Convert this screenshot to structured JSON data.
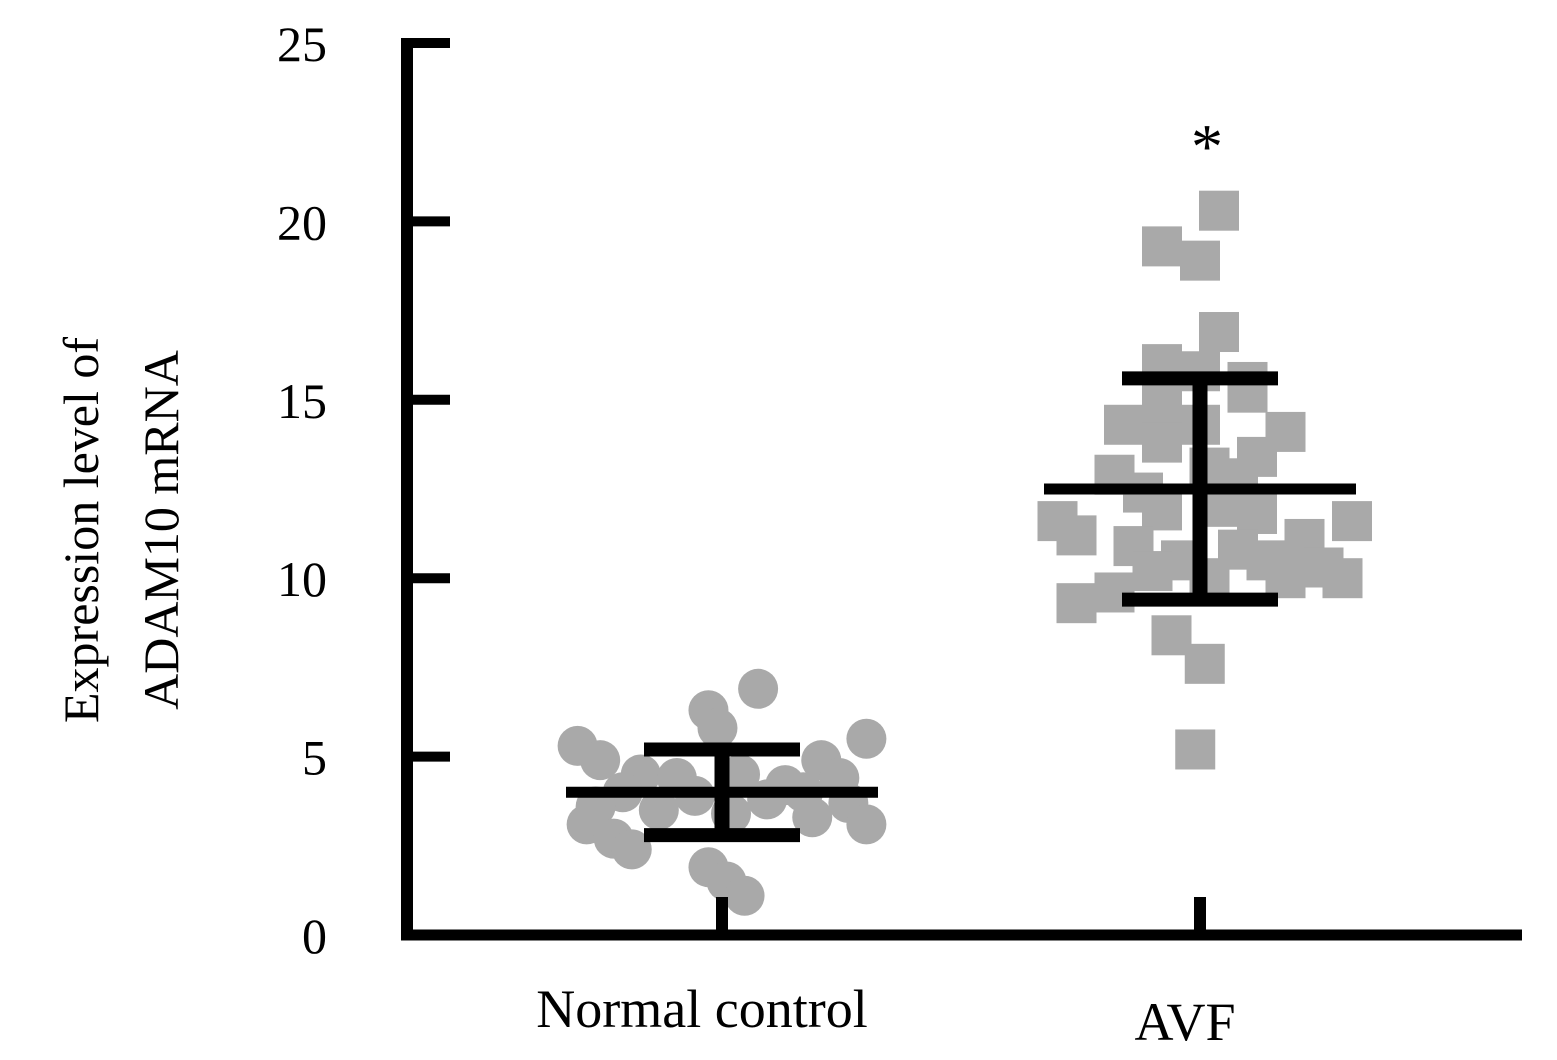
{
  "chart_data": {
    "type": "scatter",
    "title": "",
    "xlabel": "",
    "ylabel_lines": [
      "Expression level of",
      "ADAM10 mRNA"
    ],
    "ylim": [
      0,
      25
    ],
    "yticks": [
      0,
      5,
      10,
      15,
      20,
      25
    ],
    "ytick_labels": [
      "0",
      "5",
      "10",
      "15",
      "20",
      "25"
    ],
    "categories": [
      "Normal control",
      "AVF"
    ],
    "grid": false,
    "marker_color": "#a9a9a9",
    "errorbar_color": "#000000",
    "series": [
      {
        "name": "Normal control",
        "marker": "circle",
        "mean": 4.0,
        "sd_upper": 5.2,
        "sd_lower": 2.8,
        "points": [
          {
            "offset": 0.4,
            "y": 6.9
          },
          {
            "offset": -0.15,
            "y": 6.3
          },
          {
            "offset": -0.05,
            "y": 5.8
          },
          {
            "offset": -1.6,
            "y": 5.3
          },
          {
            "offset": -1.35,
            "y": 4.9
          },
          {
            "offset": 1.6,
            "y": 5.5
          },
          {
            "offset": 1.1,
            "y": 4.9
          },
          {
            "offset": 1.3,
            "y": 4.4
          },
          {
            "offset": -0.9,
            "y": 4.5
          },
          {
            "offset": -0.5,
            "y": 4.4
          },
          {
            "offset": 0.2,
            "y": 4.5
          },
          {
            "offset": 0.7,
            "y": 4.2
          },
          {
            "offset": -1.1,
            "y": 4.0
          },
          {
            "offset": 0.9,
            "y": 4.0
          },
          {
            "offset": -0.3,
            "y": 3.9
          },
          {
            "offset": 0.5,
            "y": 3.8
          },
          {
            "offset": -1.4,
            "y": 3.6
          },
          {
            "offset": 1.4,
            "y": 3.7
          },
          {
            "offset": -0.7,
            "y": 3.5
          },
          {
            "offset": 0.1,
            "y": 3.4
          },
          {
            "offset": 1.0,
            "y": 3.3
          },
          {
            "offset": -1.5,
            "y": 3.1
          },
          {
            "offset": 1.6,
            "y": 3.1
          },
          {
            "offset": -1.2,
            "y": 2.7
          },
          {
            "offset": -1.0,
            "y": 2.4
          },
          {
            "offset": -0.15,
            "y": 1.9
          },
          {
            "offset": 0.05,
            "y": 1.5
          },
          {
            "offset": 0.25,
            "y": 1.1
          }
        ]
      },
      {
        "name": "AVF",
        "marker": "square",
        "mean": 12.5,
        "sd_upper": 15.6,
        "sd_lower": 9.4,
        "significance": "*",
        "points": [
          {
            "offset": 0.2,
            "y": 20.3
          },
          {
            "offset": -0.4,
            "y": 19.3
          },
          {
            "offset": 0.0,
            "y": 18.9
          },
          {
            "offset": 0.2,
            "y": 16.9
          },
          {
            "offset": -0.4,
            "y": 16.0
          },
          {
            "offset": 0.0,
            "y": 15.8
          },
          {
            "offset": 0.5,
            "y": 15.5
          },
          {
            "offset": 0.5,
            "y": 15.2
          },
          {
            "offset": -0.4,
            "y": 14.9
          },
          {
            "offset": -0.8,
            "y": 14.3
          },
          {
            "offset": 0.0,
            "y": 14.3
          },
          {
            "offset": 0.9,
            "y": 14.1
          },
          {
            "offset": -0.4,
            "y": 13.8
          },
          {
            "offset": 0.6,
            "y": 13.4
          },
          {
            "offset": 0.1,
            "y": 13.1
          },
          {
            "offset": -0.9,
            "y": 12.9
          },
          {
            "offset": 0.4,
            "y": 12.8
          },
          {
            "offset": -0.6,
            "y": 12.4
          },
          {
            "offset": 0.2,
            "y": 12.0
          },
          {
            "offset": -0.4,
            "y": 11.9
          },
          {
            "offset": 0.6,
            "y": 11.8
          },
          {
            "offset": -1.5,
            "y": 11.6
          },
          {
            "offset": 1.6,
            "y": 11.6
          },
          {
            "offset": -1.3,
            "y": 11.2
          },
          {
            "offset": 1.1,
            "y": 11.1
          },
          {
            "offset": -0.7,
            "y": 10.9
          },
          {
            "offset": 0.4,
            "y": 10.8
          },
          {
            "offset": -0.2,
            "y": 10.5
          },
          {
            "offset": 0.7,
            "y": 10.5
          },
          {
            "offset": 1.3,
            "y": 10.3
          },
          {
            "offset": -0.5,
            "y": 10.2
          },
          {
            "offset": 0.1,
            "y": 10.0
          },
          {
            "offset": 0.9,
            "y": 10.0
          },
          {
            "offset": 1.5,
            "y": 10.0
          },
          {
            "offset": -0.9,
            "y": 9.6
          },
          {
            "offset": -1.3,
            "y": 9.3
          },
          {
            "offset": -0.3,
            "y": 8.4
          },
          {
            "offset": 0.05,
            "y": 7.6
          },
          {
            "offset": -0.05,
            "y": 5.2
          }
        ]
      }
    ]
  }
}
